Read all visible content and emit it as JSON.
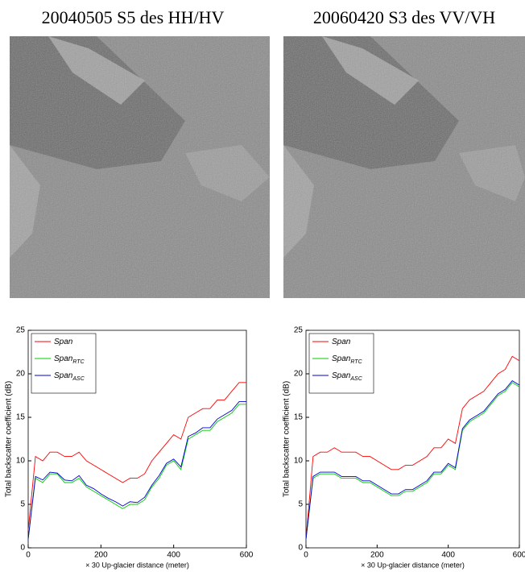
{
  "images": [
    {
      "title": "20040505 S5 des HH/HV"
    },
    {
      "title": "20060420 S3 des VV/VH"
    }
  ],
  "chart_data": [
    {
      "type": "line",
      "xlabel": "× 30 Up-glacier distance (meter)",
      "ylabel": "Total backscatter coefficient (dB)",
      "xlim": [
        0,
        600
      ],
      "ylim": [
        0,
        25
      ],
      "xticks": [
        0,
        200,
        400,
        600
      ],
      "yticks": [
        0,
        5,
        10,
        15,
        20,
        25
      ],
      "legend": "upper left",
      "x": [
        0,
        20,
        40,
        60,
        80,
        100,
        120,
        140,
        160,
        180,
        200,
        220,
        240,
        260,
        280,
        300,
        320,
        340,
        360,
        380,
        400,
        420,
        440,
        460,
        480,
        500,
        520,
        540,
        560,
        580,
        600
      ],
      "series": [
        {
          "name": "Span",
          "color": "#ff0000",
          "values": [
            2,
            10.5,
            10,
            11,
            11,
            10.5,
            10.5,
            11,
            10,
            9.5,
            9,
            8.5,
            8,
            7.5,
            8,
            8,
            8.5,
            10,
            11,
            12,
            13,
            12.5,
            15,
            15.5,
            16,
            16,
            17,
            17,
            18,
            19,
            19
          ]
        },
        {
          "name": "Span",
          "name_subscript": "RTC",
          "color": "#00cc00",
          "values": [
            1,
            8,
            7.5,
            8.5,
            8.5,
            7.5,
            7.5,
            8,
            7,
            6.5,
            6,
            5.5,
            5,
            4.5,
            5,
            5,
            5.5,
            7,
            8,
            9.5,
            10,
            9,
            12.5,
            13,
            13.5,
            13.5,
            14.5,
            15,
            15.5,
            16.5,
            16.5
          ]
        },
        {
          "name": "Span",
          "name_subscript": "ASC",
          "color": "#0000cc",
          "values": [
            1,
            8.2,
            7.8,
            8.7,
            8.6,
            7.8,
            7.7,
            8.3,
            7.2,
            6.8,
            6.2,
            5.7,
            5.3,
            4.8,
            5.3,
            5.2,
            5.8,
            7.2,
            8.3,
            9.7,
            10.2,
            9.3,
            12.8,
            13.2,
            13.8,
            13.8,
            14.8,
            15.3,
            15.8,
            16.8,
            16.8
          ]
        }
      ]
    },
    {
      "type": "line",
      "xlabel": "× 30 Up-glacier distance (meter)",
      "ylabel": "Total backscatter coefficient (dB)",
      "xlim": [
        0,
        600
      ],
      "ylim": [
        0,
        25
      ],
      "xticks": [
        0,
        200,
        400,
        600
      ],
      "yticks": [
        0,
        5,
        10,
        15,
        20,
        25
      ],
      "legend": "upper left",
      "x": [
        0,
        20,
        40,
        60,
        80,
        100,
        120,
        140,
        160,
        180,
        200,
        220,
        240,
        260,
        280,
        300,
        320,
        340,
        360,
        380,
        400,
        420,
        440,
        460,
        480,
        500,
        520,
        540,
        560,
        580,
        600
      ],
      "series": [
        {
          "name": "Span",
          "color": "#ff0000",
          "values": [
            1,
            10.5,
            11,
            11,
            11.5,
            11,
            11,
            11,
            10.5,
            10.5,
            10,
            9.5,
            9,
            9,
            9.5,
            9.5,
            10,
            10.5,
            11.5,
            11.5,
            12.5,
            12,
            16,
            17,
            17.5,
            18,
            19,
            20,
            20.5,
            22,
            21.5
          ]
        },
        {
          "name": "Span",
          "name_subscript": "RTC",
          "color": "#00cc00",
          "values": [
            1,
            8,
            8.5,
            8.5,
            8.5,
            8,
            8,
            8,
            7.5,
            7.5,
            7,
            6.5,
            6,
            6,
            6.5,
            6.5,
            7,
            7.5,
            8.5,
            8.5,
            9.5,
            9,
            13.5,
            14.5,
            15,
            15.5,
            16.5,
            17.5,
            18,
            19,
            18.5
          ]
        },
        {
          "name": "Span",
          "name_subscript": "ASC",
          "color": "#0000cc",
          "values": [
            1,
            8.2,
            8.7,
            8.7,
            8.7,
            8.2,
            8.2,
            8.2,
            7.7,
            7.7,
            7.2,
            6.7,
            6.2,
            6.2,
            6.7,
            6.7,
            7.2,
            7.7,
            8.7,
            8.7,
            9.7,
            9.2,
            13.7,
            14.7,
            15.2,
            15.7,
            16.7,
            17.7,
            18.2,
            19.2,
            18.7
          ]
        }
      ]
    }
  ]
}
